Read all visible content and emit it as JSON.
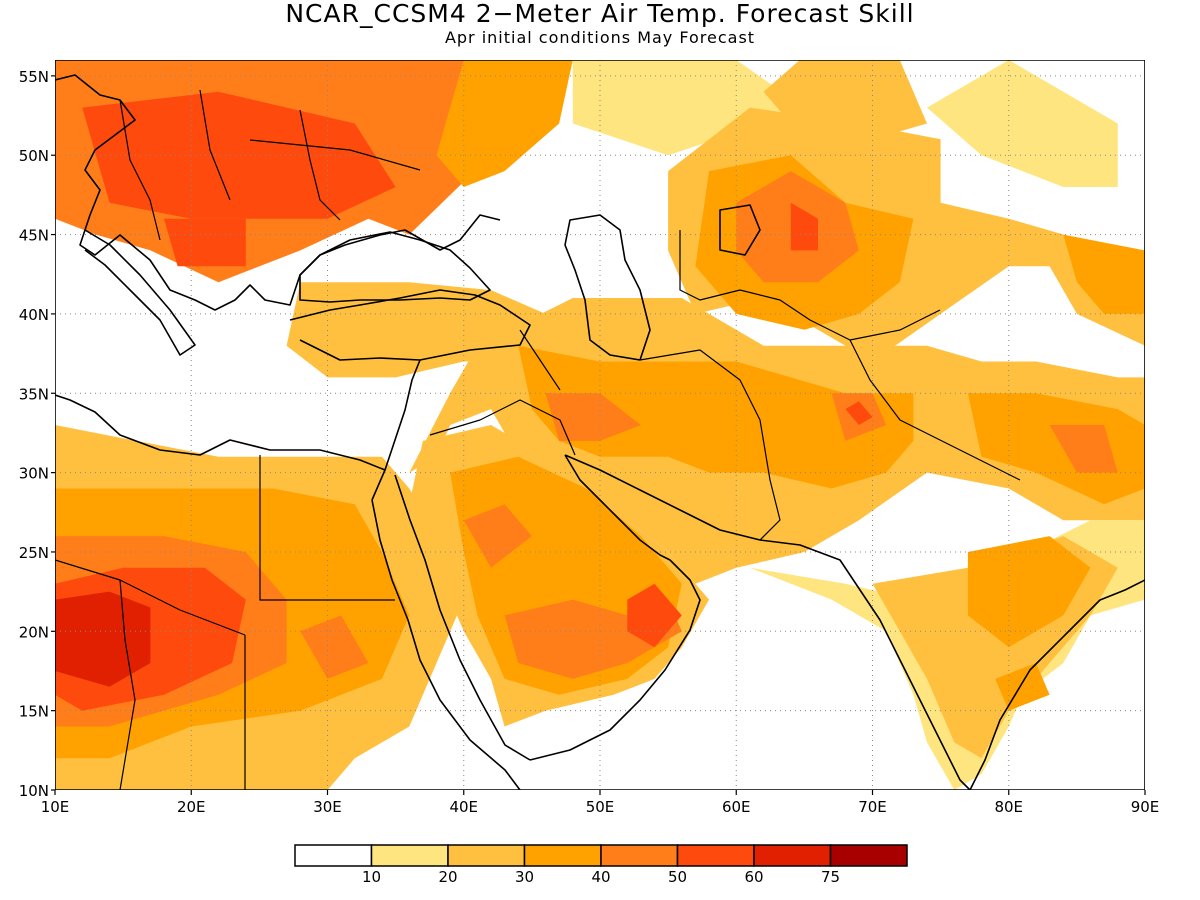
{
  "title": "NCAR_CCSM4 2−Meter Air Temp. Forecast Skill",
  "subtitle": "Apr initial conditions  May Forecast",
  "map": {
    "lon_range": [
      10,
      90
    ],
    "lat_range": [
      10,
      56
    ],
    "lat_ticks": [
      "10N",
      "15N",
      "20N",
      "25N",
      "30N",
      "35N",
      "40N",
      "45N",
      "50N",
      "55N"
    ],
    "lon_ticks": [
      "10E",
      "20E",
      "30E",
      "40E",
      "50E",
      "60E",
      "70E",
      "80E",
      "90E"
    ],
    "grid": "dotted"
  },
  "colorbar": {
    "colors": [
      "#ffffff",
      "#ffe57f",
      "#ffc040",
      "#ffa200",
      "#ff7e1a",
      "#ff4a0d",
      "#e02000",
      "#a80000"
    ],
    "labels": [
      "10",
      "20",
      "30",
      "40",
      "50",
      "60",
      "75"
    ]
  },
  "skill_regions": [
    {
      "level": 4,
      "pts": [
        [
          10,
          56
        ],
        [
          40,
          56
        ],
        [
          42,
          50
        ],
        [
          36,
          45
        ],
        [
          33,
          46
        ],
        [
          28,
          44
        ],
        [
          22,
          42
        ],
        [
          17,
          44
        ],
        [
          13,
          45
        ],
        [
          10,
          46
        ]
      ]
    },
    {
      "level": 5,
      "pts": [
        [
          12,
          53
        ],
        [
          22,
          54
        ],
        [
          32,
          52
        ],
        [
          35,
          48
        ],
        [
          30,
          46
        ],
        [
          20,
          46
        ],
        [
          14,
          47
        ]
      ]
    },
    {
      "level": 5,
      "pts": [
        [
          18,
          46
        ],
        [
          24,
          46
        ],
        [
          24,
          43
        ],
        [
          19,
          43
        ]
      ]
    },
    {
      "level": 3,
      "pts": [
        [
          40,
          56
        ],
        [
          48,
          56
        ],
        [
          47,
          52
        ],
        [
          43,
          49
        ],
        [
          40,
          48
        ],
        [
          38,
          50
        ]
      ]
    },
    {
      "level": 1,
      "pts": [
        [
          48,
          56
        ],
        [
          60,
          56
        ],
        [
          65,
          53
        ],
        [
          62,
          52
        ],
        [
          55,
          50
        ],
        [
          48,
          52
        ]
      ]
    },
    {
      "level": 2,
      "pts": [
        [
          62,
          54
        ],
        [
          66,
          57
        ],
        [
          72,
          56
        ],
        [
          74,
          52
        ],
        [
          70,
          51
        ],
        [
          64,
          52
        ]
      ]
    },
    {
      "level": 1,
      "pts": [
        [
          74,
          53
        ],
        [
          80,
          56
        ],
        [
          84,
          54
        ],
        [
          88,
          52
        ],
        [
          88,
          48
        ],
        [
          84,
          48
        ],
        [
          78,
          50
        ]
      ]
    },
    {
      "level": 2,
      "pts": [
        [
          55,
          49
        ],
        [
          61,
          53
        ],
        [
          69,
          52
        ],
        [
          75,
          51
        ],
        [
          75,
          47
        ],
        [
          80,
          46
        ],
        [
          88,
          44
        ],
        [
          90,
          44
        ],
        [
          90,
          38
        ],
        [
          85,
          40
        ],
        [
          83,
          43
        ],
        [
          80,
          43
        ],
        [
          75,
          40
        ],
        [
          70,
          37
        ],
        [
          66,
          39
        ],
        [
          62,
          41
        ],
        [
          57,
          40
        ],
        [
          55,
          44
        ]
      ]
    },
    {
      "level": 3,
      "pts": [
        [
          58,
          49
        ],
        [
          64,
          50
        ],
        [
          68,
          47
        ],
        [
          73,
          46
        ],
        [
          72,
          42
        ],
        [
          69,
          40
        ],
        [
          65,
          39
        ],
        [
          60,
          40
        ],
        [
          57,
          43
        ]
      ]
    },
    {
      "level": 4,
      "pts": [
        [
          60,
          47
        ],
        [
          64,
          49
        ],
        [
          68,
          47
        ],
        [
          69,
          44
        ],
        [
          66,
          42
        ],
        [
          62,
          42
        ],
        [
          60,
          44
        ]
      ]
    },
    {
      "level": 5,
      "pts": [
        [
          64,
          47
        ],
        [
          66,
          46
        ],
        [
          66,
          44
        ],
        [
          64,
          44
        ]
      ]
    },
    {
      "level": 3,
      "pts": [
        [
          84,
          45
        ],
        [
          90,
          44
        ],
        [
          90,
          40
        ],
        [
          87,
          40
        ],
        [
          85,
          42
        ]
      ]
    },
    {
      "level": 2,
      "pts": [
        [
          28,
          42
        ],
        [
          36,
          42
        ],
        [
          42,
          41.5
        ],
        [
          46,
          40
        ],
        [
          44,
          37
        ],
        [
          40,
          37
        ],
        [
          35,
          36
        ],
        [
          30,
          36
        ],
        [
          27,
          38
        ]
      ]
    },
    {
      "level": 2,
      "pts": [
        [
          41,
          38
        ],
        [
          48,
          41
        ],
        [
          56,
          41
        ],
        [
          62,
          38
        ],
        [
          68,
          38
        ],
        [
          74,
          38
        ],
        [
          78,
          37
        ],
        [
          82,
          37
        ],
        [
          88,
          36
        ],
        [
          90,
          36
        ],
        [
          90,
          27
        ],
        [
          84,
          27
        ],
        [
          80,
          29
        ],
        [
          74,
          30
        ],
        [
          69,
          27
        ],
        [
          65,
          25
        ],
        [
          60,
          24
        ],
        [
          57,
          23
        ],
        [
          55,
          25
        ],
        [
          52,
          27
        ],
        [
          47,
          29
        ],
        [
          44,
          31
        ],
        [
          42,
          34
        ],
        [
          39,
          33
        ],
        [
          38,
          31
        ],
        [
          36,
          30
        ],
        [
          39,
          35
        ]
      ]
    },
    {
      "level": 3,
      "pts": [
        [
          44,
          38
        ],
        [
          50,
          37
        ],
        [
          56,
          37
        ],
        [
          60,
          37
        ],
        [
          64,
          36
        ],
        [
          68,
          35
        ],
        [
          73,
          35
        ],
        [
          73,
          32
        ],
        [
          71,
          30
        ],
        [
          67,
          29
        ],
        [
          62,
          30
        ],
        [
          58,
          30
        ],
        [
          55,
          31
        ],
        [
          50,
          31
        ],
        [
          47,
          32
        ],
        [
          45,
          34
        ]
      ]
    },
    {
      "level": 4,
      "pts": [
        [
          46,
          35
        ],
        [
          50,
          35
        ],
        [
          53,
          33
        ],
        [
          50,
          32
        ],
        [
          47,
          32
        ]
      ]
    },
    {
      "level": 4,
      "pts": [
        [
          67,
          35
        ],
        [
          70,
          35
        ],
        [
          71,
          33
        ],
        [
          68,
          32
        ]
      ]
    },
    {
      "level": 5,
      "pts": [
        [
          68,
          34
        ],
        [
          69,
          34.5
        ],
        [
          70,
          33.5
        ],
        [
          69,
          33
        ]
      ]
    },
    {
      "level": 3,
      "pts": [
        [
          77,
          35
        ],
        [
          82,
          35
        ],
        [
          88,
          34
        ],
        [
          90,
          33
        ],
        [
          90,
          29
        ],
        [
          87,
          28
        ],
        [
          82,
          30
        ],
        [
          78,
          31
        ]
      ]
    },
    {
      "level": 4,
      "pts": [
        [
          83,
          33
        ],
        [
          87,
          33
        ],
        [
          88,
          30
        ],
        [
          85,
          30
        ]
      ]
    },
    {
      "level": 2,
      "pts": [
        [
          37,
          32
        ],
        [
          42,
          33
        ],
        [
          48,
          30
        ],
        [
          52,
          27
        ],
        [
          55,
          25
        ],
        [
          58,
          22
        ],
        [
          56,
          19
        ],
        [
          54,
          17
        ],
        [
          51,
          16
        ],
        [
          46,
          15
        ],
        [
          43,
          14
        ],
        [
          42,
          17
        ],
        [
          40,
          20
        ],
        [
          38,
          24
        ],
        [
          36,
          28
        ]
      ]
    },
    {
      "level": 3,
      "pts": [
        [
          39,
          30
        ],
        [
          44,
          31
        ],
        [
          49,
          29
        ],
        [
          53,
          26
        ],
        [
          56,
          23
        ],
        [
          55,
          19
        ],
        [
          52,
          17
        ],
        [
          47,
          16
        ],
        [
          43,
          17
        ],
        [
          41,
          21
        ],
        [
          40,
          25
        ]
      ]
    },
    {
      "level": 4,
      "pts": [
        [
          40,
          27
        ],
        [
          43,
          28
        ],
        [
          45,
          26
        ],
        [
          42,
          24
        ]
      ]
    },
    {
      "level": 4,
      "pts": [
        [
          43,
          21
        ],
        [
          48,
          22
        ],
        [
          52,
          21
        ],
        [
          55,
          22
        ],
        [
          56,
          20
        ],
        [
          52,
          18
        ],
        [
          48,
          17
        ],
        [
          44,
          18
        ]
      ]
    },
    {
      "level": 5,
      "pts": [
        [
          52,
          22
        ],
        [
          54,
          23
        ],
        [
          56,
          21
        ],
        [
          54,
          19
        ],
        [
          52,
          20
        ]
      ]
    },
    {
      "level": 2,
      "pts": [
        [
          10,
          33
        ],
        [
          16,
          32
        ],
        [
          22,
          31
        ],
        [
          28,
          31
        ],
        [
          34,
          31
        ],
        [
          36,
          29
        ],
        [
          38,
          26
        ],
        [
          40,
          22
        ],
        [
          38,
          18
        ],
        [
          36,
          14
        ],
        [
          32,
          12
        ],
        [
          30,
          10
        ],
        [
          10,
          10
        ]
      ]
    },
    {
      "level": 3,
      "pts": [
        [
          10,
          29
        ],
        [
          18,
          29
        ],
        [
          26,
          29
        ],
        [
          32,
          28
        ],
        [
          34,
          25
        ],
        [
          36,
          21
        ],
        [
          34,
          17
        ],
        [
          28,
          15
        ],
        [
          20,
          14
        ],
        [
          14,
          12
        ],
        [
          10,
          12
        ]
      ]
    },
    {
      "level": 4,
      "pts": [
        [
          10,
          26
        ],
        [
          18,
          26
        ],
        [
          24,
          25
        ],
        [
          27,
          22
        ],
        [
          27,
          18
        ],
        [
          22,
          16
        ],
        [
          14,
          14
        ],
        [
          10,
          14
        ]
      ]
    },
    {
      "level": 5,
      "pts": [
        [
          10,
          23
        ],
        [
          15,
          24
        ],
        [
          21,
          24
        ],
        [
          24,
          22
        ],
        [
          23,
          18
        ],
        [
          18,
          16
        ],
        [
          12,
          15
        ],
        [
          10,
          16
        ]
      ]
    },
    {
      "level": 6,
      "pts": [
        [
          10,
          22
        ],
        [
          14,
          22.5
        ],
        [
          17,
          21.5
        ],
        [
          17,
          18
        ],
        [
          14,
          16.5
        ],
        [
          10,
          17.5
        ]
      ]
    },
    {
      "level": 4,
      "pts": [
        [
          28,
          20
        ],
        [
          31,
          21
        ],
        [
          33,
          18
        ],
        [
          30,
          17
        ]
      ]
    },
    {
      "level": 1,
      "pts": [
        [
          61,
          24
        ],
        [
          68,
          23
        ],
        [
          73,
          22
        ],
        [
          79,
          24
        ],
        [
          86,
          27
        ],
        [
          90,
          27
        ],
        [
          90,
          22
        ],
        [
          86,
          21
        ],
        [
          84,
          18
        ],
        [
          81,
          16
        ],
        [
          80,
          14
        ],
        [
          78,
          11
        ],
        [
          76,
          10
        ],
        [
          74,
          13
        ],
        [
          73,
          16
        ],
        [
          71,
          20
        ],
        [
          67,
          22
        ]
      ]
    },
    {
      "level": 2,
      "pts": [
        [
          70,
          23
        ],
        [
          77,
          24
        ],
        [
          84,
          26
        ],
        [
          88,
          24
        ],
        [
          86,
          21
        ],
        [
          83,
          18
        ],
        [
          80,
          15
        ],
        [
          78,
          12
        ],
        [
          76,
          13
        ],
        [
          74,
          17
        ],
        [
          72,
          20
        ]
      ]
    },
    {
      "level": 3,
      "pts": [
        [
          77,
          25
        ],
        [
          83,
          26
        ],
        [
          86,
          24
        ],
        [
          84,
          21
        ],
        [
          80,
          19
        ],
        [
          77,
          21
        ]
      ]
    },
    {
      "level": 3,
      "pts": [
        [
          79,
          17
        ],
        [
          82,
          18
        ],
        [
          83,
          16
        ],
        [
          80,
          15
        ]
      ]
    }
  ]
}
